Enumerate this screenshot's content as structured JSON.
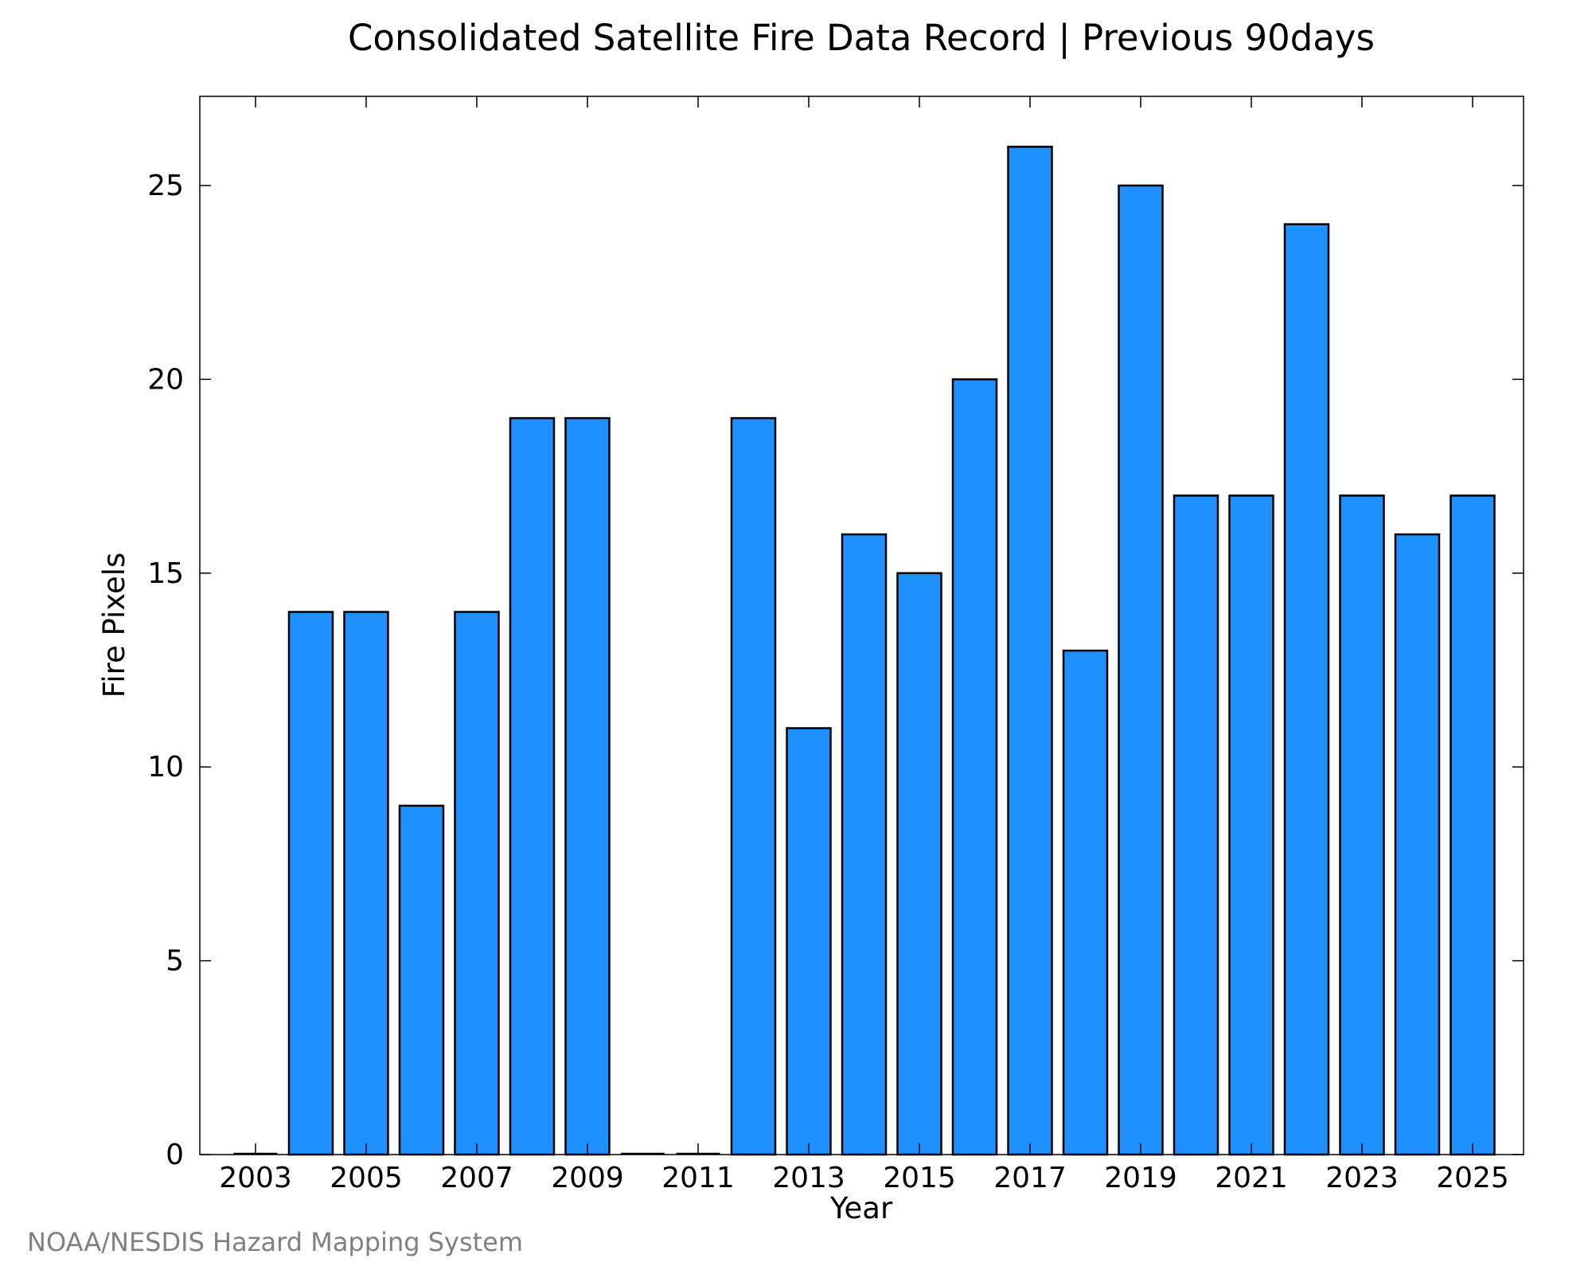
{
  "chart_data": {
    "type": "bar",
    "title": "Consolidated Satellite Fire Data Record | Previous 90days",
    "xlabel": "Year",
    "ylabel": "Fire Pixels",
    "categories": [
      "2003",
      "2004",
      "2005",
      "2006",
      "2007",
      "2008",
      "2009",
      "2010",
      "2011",
      "2012",
      "2013",
      "2014",
      "2015",
      "2016",
      "2017",
      "2018",
      "2019",
      "2020",
      "2021",
      "2022",
      "2023",
      "2024",
      "2025"
    ],
    "values": [
      0,
      14,
      14,
      9,
      14,
      19,
      19,
      0,
      0,
      19,
      11,
      16,
      15,
      20,
      26,
      13,
      25,
      17,
      17,
      24,
      17,
      16,
      17
    ],
    "x_tick_labels": [
      "2003",
      "2005",
      "2007",
      "2009",
      "2011",
      "2013",
      "2015",
      "2017",
      "2019",
      "2021",
      "2023",
      "2025"
    ],
    "y_tick_labels": [
      "0",
      "5",
      "10",
      "15",
      "20",
      "25"
    ],
    "ylim": [
      0,
      27.3
    ],
    "bar_color": "#1E90FF",
    "bar_edge_color": "#000000",
    "grid": false
  },
  "credit": "NOAA/NESDIS Hazard Mapping System"
}
